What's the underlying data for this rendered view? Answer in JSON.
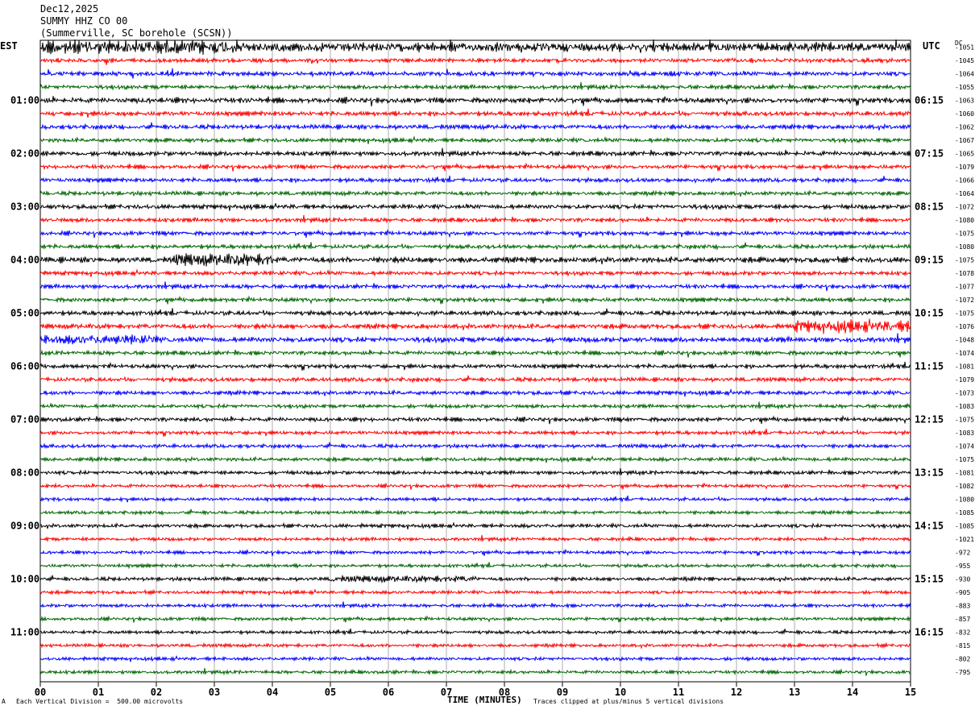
{
  "header": {
    "date": "Dec12,2025",
    "station": "SUMMY HHZ CO 00",
    "location": "(Summerville, SC borehole (SCSN))"
  },
  "left_timezone": "EST",
  "right_timezone": "UTC",
  "dc_header": "DC",
  "footer": {
    "scale_note": "Each Vertical Division =  500.00 microvolts",
    "clip_note": "Traces clipped at plus/minus 5 vertical divisions",
    "mark": "A"
  },
  "chart_data": {
    "type": "line",
    "title": "",
    "xlabel": "TIME (MINUTES)",
    "ylabel": "",
    "xlim": [
      0,
      15
    ],
    "x_ticks": [
      "00",
      "01",
      "02",
      "03",
      "04",
      "05",
      "06",
      "07",
      "08",
      "09",
      "10",
      "11",
      "12",
      "13",
      "14",
      "15"
    ],
    "traces_per_hour": 4,
    "trace_minutes": 15,
    "trace_colors": [
      "#000000",
      "#ff0000",
      "#0000ff",
      "#006400"
    ],
    "left_hour_labels": [
      "01:00",
      "02:00",
      "03:00",
      "04:00",
      "05:00",
      "06:00",
      "07:00",
      "08:00",
      "09:00",
      "10:00",
      "11:00"
    ],
    "right_hour_labels": [
      "06:15",
      "07:15",
      "08:15",
      "09:15",
      "10:15",
      "11:15",
      "12:15",
      "13:15",
      "14:15",
      "15:15",
      "16:15"
    ],
    "dc_offsets": [
      "-1051",
      "-1045",
      "-1064",
      "-1055",
      "-1063",
      "-1060",
      "-1062",
      "-1067",
      "-1065",
      "-1079",
      "-1066",
      "-1064",
      "-1072",
      "-1080",
      "-1075",
      "-1080",
      "-1075",
      "-1078",
      "-1077",
      "-1072",
      "-1075",
      "-1076",
      "-1048",
      "-1074",
      "-1081",
      "-1079",
      "-1073",
      "-1083",
      "-1075",
      "-1083",
      "-1074",
      "-1075",
      "-1081",
      "-1082",
      "-1080",
      "-1085",
      "-1085",
      "-1021",
      "-972",
      "-955",
      "-930",
      "-905",
      "-883",
      "-857",
      "-832",
      "-815",
      "-802",
      "-795"
    ],
    "trace_activity": [
      2.2,
      1.0,
      1.1,
      1.0,
      1.3,
      1.1,
      1.1,
      1.0,
      1.1,
      1.0,
      1.0,
      1.0,
      1.1,
      1.0,
      1.0,
      1.0,
      1.4,
      1.0,
      1.0,
      1.0,
      1.1,
      1.2,
      1.3,
      1.0,
      1.0,
      1.0,
      1.0,
      0.9,
      1.0,
      0.9,
      0.9,
      0.9,
      0.9,
      0.8,
      0.8,
      0.8,
      0.9,
      0.8,
      0.8,
      0.8,
      0.9,
      0.8,
      0.8,
      0.8,
      0.8,
      0.8,
      0.8,
      0.8
    ],
    "bursts": [
      {
        "trace": 0,
        "start_min": 0.0,
        "end_min": 3.5,
        "gain": 1.6
      },
      {
        "trace": 16,
        "start_min": 2.3,
        "end_min": 4.0,
        "gain": 2.2
      },
      {
        "trace": 21,
        "start_min": 13.0,
        "end_min": 15.0,
        "gain": 2.4
      },
      {
        "trace": 22,
        "start_min": 0.0,
        "end_min": 2.0,
        "gain": 1.8
      },
      {
        "trace": 40,
        "start_min": 5.0,
        "end_min": 7.5,
        "gain": 1.8
      }
    ]
  }
}
